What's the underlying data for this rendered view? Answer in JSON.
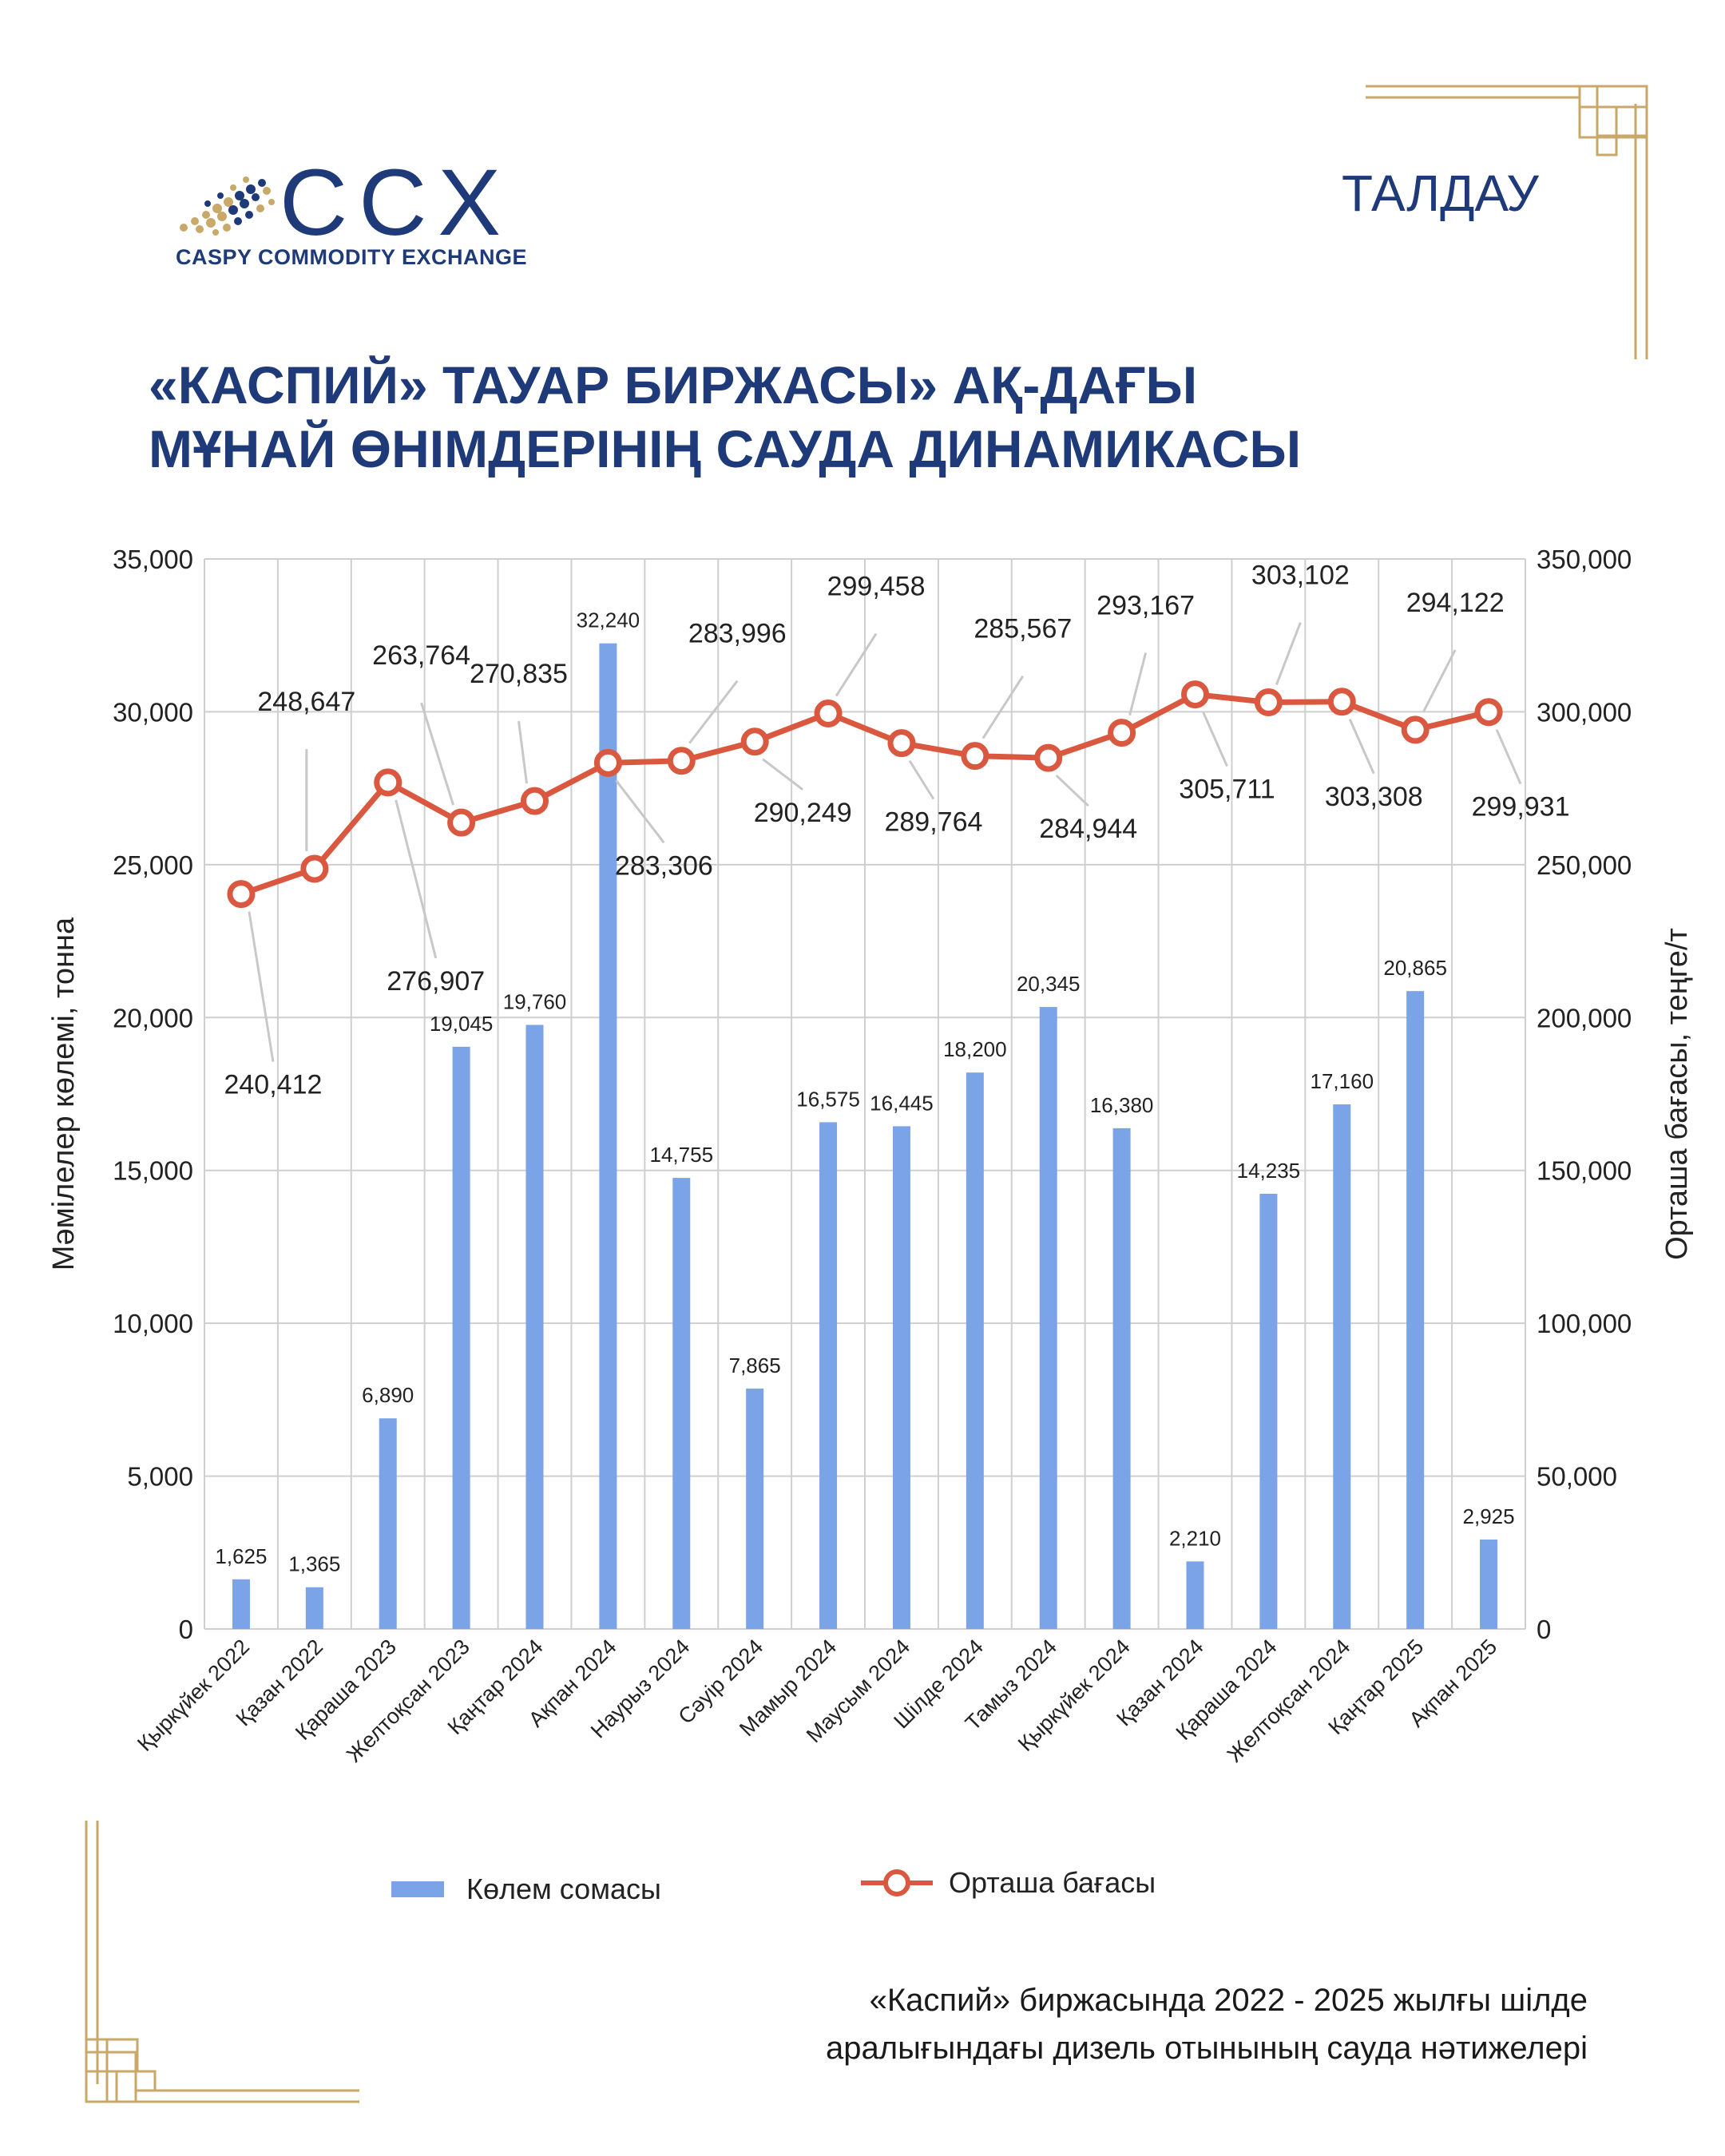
{
  "logo": {
    "mark": "CCX",
    "subtitle": "CASPY COMMODITY EXCHANGE"
  },
  "section_tag": "ТАЛДАУ",
  "title": {
    "line1": "«КАСПИЙ» ТАУАР БИРЖАСЫ» АҚ-ДАҒЫ",
    "line2": "МҰНАЙ ӨНІМДЕРІНІҢ САУДА ДИНАМИКАСЫ"
  },
  "caption": {
    "line1": "«Каспий» биржасында 2022 - 2025 жылғы шілде",
    "line2": "аралығындағы дизель отынының сауда нәтижелері"
  },
  "colors": {
    "brand": "#1e3a78",
    "bar": "#7aa3e8",
    "line": "#d9583f",
    "gold": "#c9a969"
  },
  "chart_data": {
    "type": "bar",
    "categories": [
      "Қыркүйек 2022",
      "Қазан 2022",
      "Қараша 2023",
      "Желтоқсан 2023",
      "Қаңтар 2024",
      "Ақпан 2024",
      "Наурыз 2024",
      "Сәуір 2024",
      "Мамыр 2024",
      "Маусым 2024",
      "Шілде 2024",
      "Тамыз 2024",
      "Қыркүйек 2024",
      "Қазан 2024",
      "Қараша 2024",
      "Желтоқсан 2024",
      "Қаңтар 2025",
      "Ақпан 2025"
    ],
    "series": [
      {
        "name": "Көлем сомасы",
        "type": "bar",
        "axis": "left",
        "values": [
          1625,
          1365,
          6890,
          19045,
          19760,
          32240,
          14755,
          7865,
          16575,
          16445,
          18200,
          20345,
          16380,
          2210,
          14235,
          17160,
          20865,
          2925
        ]
      },
      {
        "name": "Орташа бағасы",
        "type": "line",
        "axis": "right",
        "values": [
          240412,
          248647,
          276907,
          263764,
          270835,
          283306,
          283996,
          290249,
          299458,
          289764,
          285567,
          284944,
          293167,
          305711,
          303102,
          303308,
          294122,
          299931
        ]
      }
    ],
    "bar_labels": [
      "1,625",
      "1,365",
      "6,890",
      "19,045",
      "19,760",
      "32,240",
      "14,755",
      "7,865",
      "16,575",
      "16,445",
      "18,200",
      "20,345",
      "16,380",
      "2,210",
      "14,235",
      "17,160",
      "20,865",
      "2,925"
    ],
    "line_labels": [
      "240,412",
      "248,647",
      "276,907",
      "263,764",
      "270,835",
      "283,306",
      "283,996",
      "290,249",
      "299,458",
      "289,764",
      "285,567",
      "284,944",
      "293,167",
      "305,711",
      "303,102",
      "303,308",
      "294,122",
      "299,931"
    ],
    "ylabel": "Мәмілелер көлемі, тонна",
    "y2label": "Орташа бағасы, теңге/т",
    "ylim": [
      0,
      35000
    ],
    "y2lim": [
      0,
      350000
    ],
    "yticks": [
      "0",
      "5,000",
      "10,000",
      "15,000",
      "20,000",
      "25,000",
      "30,000",
      "35,000"
    ],
    "y2ticks": [
      "0",
      "50,000",
      "100,000",
      "150,000",
      "200,000",
      "250,000",
      "300,000",
      "350,000"
    ],
    "grid": true,
    "legend_position": "bottom"
  }
}
